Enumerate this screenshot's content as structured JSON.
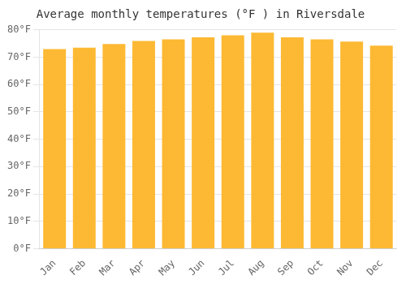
{
  "chart_data": {
    "type": "bar",
    "title": "Average monthly temperatures (°F ) in Riversdale",
    "categories": [
      "Jan",
      "Feb",
      "Mar",
      "Apr",
      "May",
      "Jun",
      "Jul",
      "Aug",
      "Sep",
      "Oct",
      "Nov",
      "Dec"
    ],
    "values": [
      73.0,
      73.5,
      74.8,
      75.9,
      76.5,
      77.3,
      78.0,
      79.0,
      77.3,
      76.5,
      75.7,
      74.2
    ],
    "color": "#FDB933",
    "ylim": [
      0,
      80
    ],
    "yticks": [
      {
        "value": 0,
        "label": "0°F"
      },
      {
        "value": 10,
        "label": "10°F"
      },
      {
        "value": 20,
        "label": "20°F"
      },
      {
        "value": 30,
        "label": "30°F"
      },
      {
        "value": 40,
        "label": "40°F"
      },
      {
        "value": 50,
        "label": "50°F"
      },
      {
        "value": 60,
        "label": "60°F"
      },
      {
        "value": 70,
        "label": "70°F"
      },
      {
        "value": 80,
        "label": "80°F"
      }
    ],
    "grid": true
  }
}
